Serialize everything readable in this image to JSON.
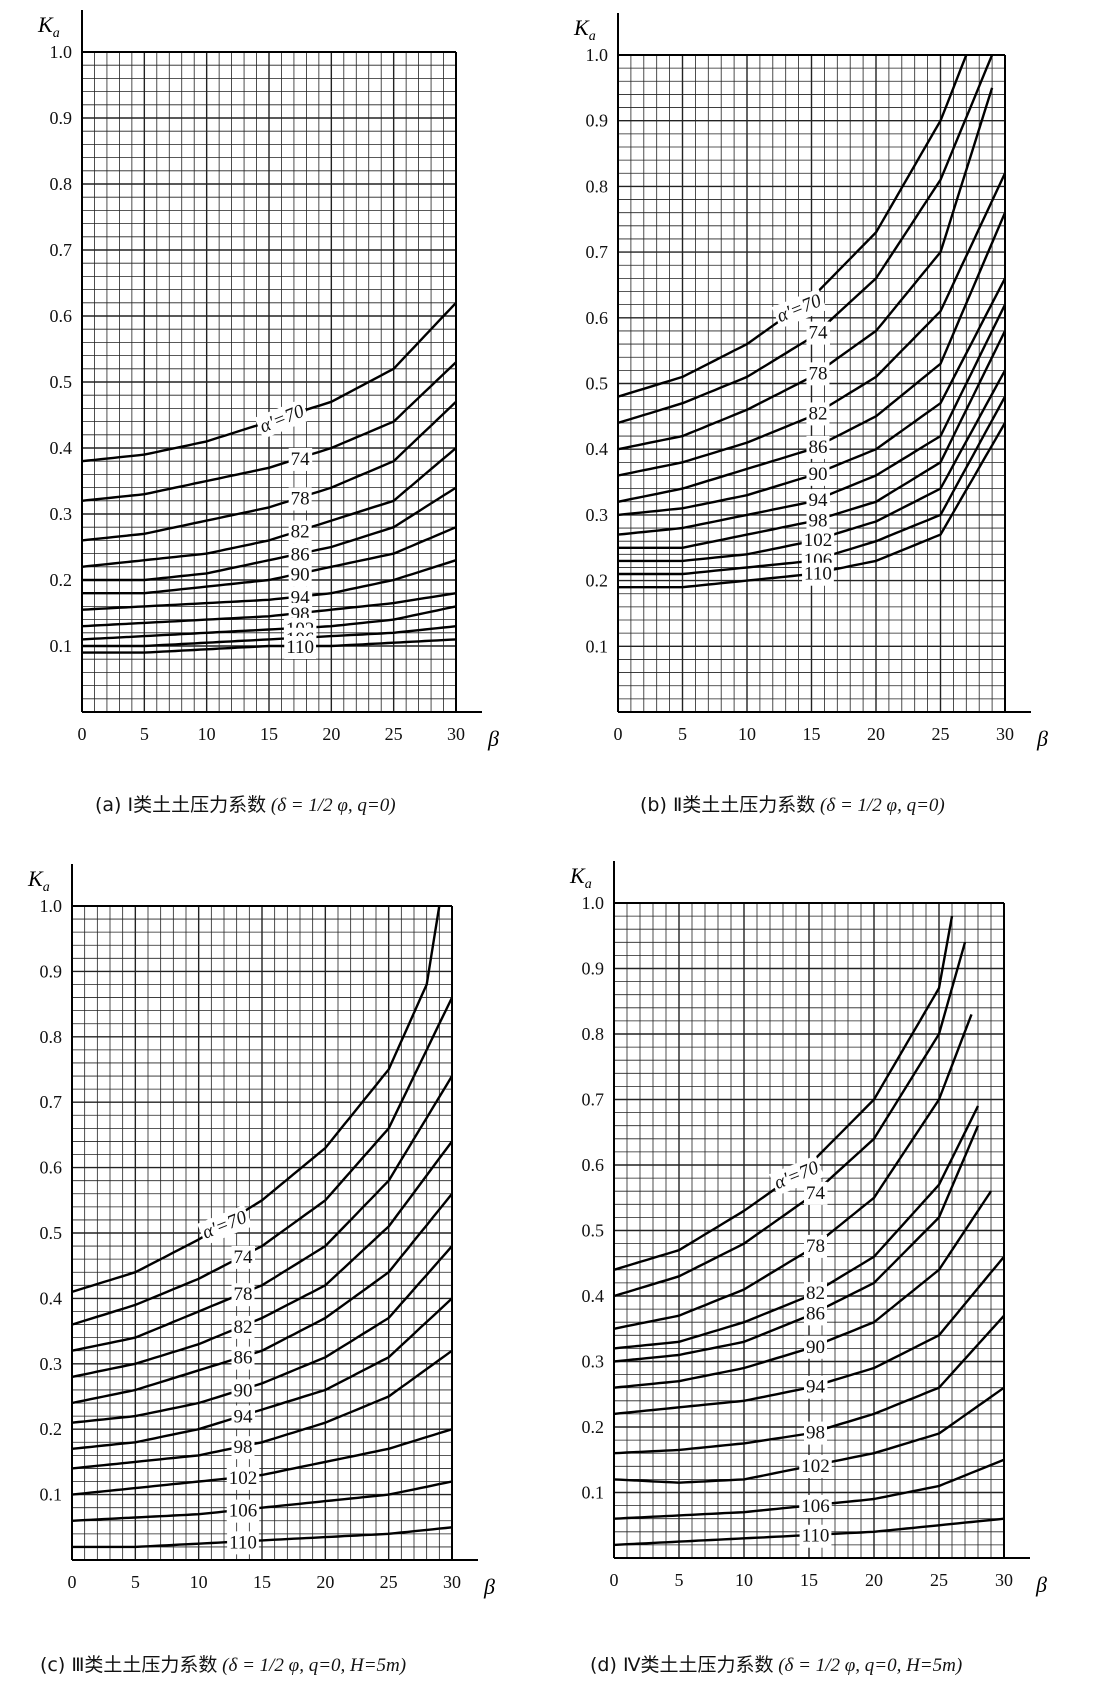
{
  "chart_data": [
    {
      "type": "line",
      "panel": "a",
      "caption_prefix": "(a)",
      "caption_title": "Ⅰ类土土压力系数",
      "caption_formula": "(δ = 1/2 φ, q=0)",
      "ylabel": "Ka",
      "xlabel": "β",
      "xlim": [
        0,
        30
      ],
      "ylim": [
        0,
        1.0
      ],
      "x_ticks": [
        "0",
        "5",
        "10",
        "15",
        "20",
        "25",
        "30"
      ],
      "y_ticks": [
        "0.1",
        "0.2",
        "0.3",
        "0.4",
        "0.5",
        "0.6",
        "0.7",
        "0.8",
        "0.9",
        "1.0"
      ],
      "grid": true,
      "series": [
        {
          "name": "α'=70",
          "x": [
            0,
            5,
            10,
            15,
            20,
            25,
            30
          ],
          "values": [
            0.38,
            0.39,
            0.41,
            0.44,
            0.47,
            0.52,
            0.62
          ]
        },
        {
          "name": "74",
          "x": [
            0,
            5,
            10,
            15,
            20,
            25,
            30
          ],
          "values": [
            0.32,
            0.33,
            0.35,
            0.37,
            0.4,
            0.44,
            0.53
          ]
        },
        {
          "name": "78",
          "x": [
            0,
            5,
            10,
            15,
            20,
            25,
            30
          ],
          "values": [
            0.26,
            0.27,
            0.29,
            0.31,
            0.34,
            0.38,
            0.47
          ]
        },
        {
          "name": "82",
          "x": [
            0,
            5,
            10,
            15,
            20,
            25,
            30
          ],
          "values": [
            0.22,
            0.23,
            0.24,
            0.26,
            0.29,
            0.32,
            0.4
          ]
        },
        {
          "name": "86",
          "x": [
            0,
            5,
            10,
            15,
            20,
            25,
            30
          ],
          "values": [
            0.2,
            0.2,
            0.21,
            0.23,
            0.25,
            0.28,
            0.34
          ]
        },
        {
          "name": "90",
          "x": [
            0,
            5,
            10,
            15,
            20,
            25,
            30
          ],
          "values": [
            0.18,
            0.18,
            0.19,
            0.2,
            0.22,
            0.24,
            0.28
          ]
        },
        {
          "name": "94",
          "x": [
            0,
            5,
            10,
            15,
            20,
            25,
            30
          ],
          "values": [
            0.155,
            0.16,
            0.165,
            0.17,
            0.18,
            0.2,
            0.23
          ]
        },
        {
          "name": "98",
          "x": [
            0,
            5,
            10,
            15,
            20,
            25,
            30
          ],
          "values": [
            0.13,
            0.135,
            0.14,
            0.145,
            0.155,
            0.165,
            0.18
          ]
        },
        {
          "name": "102",
          "x": [
            0,
            5,
            10,
            15,
            20,
            25,
            30
          ],
          "values": [
            0.11,
            0.115,
            0.12,
            0.125,
            0.13,
            0.14,
            0.16
          ]
        },
        {
          "name": "106",
          "x": [
            0,
            5,
            10,
            15,
            20,
            25,
            30
          ],
          "values": [
            0.1,
            0.1,
            0.105,
            0.11,
            0.115,
            0.12,
            0.13
          ]
        },
        {
          "name": "110",
          "x": [
            0,
            5,
            10,
            15,
            20,
            25,
            30
          ],
          "values": [
            0.09,
            0.09,
            0.095,
            0.1,
            0.1,
            0.105,
            0.11
          ]
        }
      ]
    },
    {
      "type": "line",
      "panel": "b",
      "caption_prefix": "(b)",
      "caption_title": "Ⅱ类土土压力系数",
      "caption_formula": "(δ = 1/2 φ, q=0)",
      "ylabel": "Ka",
      "xlabel": "β",
      "xlim": [
        0,
        30
      ],
      "ylim": [
        0,
        1.0
      ],
      "x_ticks": [
        "0",
        "5",
        "10",
        "15",
        "20",
        "25",
        "30"
      ],
      "y_ticks": [
        "0.1",
        "0.2",
        "0.3",
        "0.4",
        "0.5",
        "0.6",
        "0.7",
        "0.8",
        "0.9",
        "1.0"
      ],
      "grid": true,
      "series": [
        {
          "name": "α'=70",
          "x": [
            0,
            5,
            10,
            15,
            20,
            25,
            27
          ],
          "values": [
            0.48,
            0.51,
            0.56,
            0.63,
            0.73,
            0.9,
            1.0
          ]
        },
        {
          "name": "74",
          "x": [
            0,
            5,
            10,
            15,
            20,
            25,
            29
          ],
          "values": [
            0.44,
            0.47,
            0.51,
            0.57,
            0.66,
            0.81,
            1.0
          ]
        },
        {
          "name": "78",
          "x": [
            0,
            5,
            10,
            15,
            20,
            25,
            29
          ],
          "values": [
            0.4,
            0.42,
            0.46,
            0.51,
            0.58,
            0.7,
            0.95
          ]
        },
        {
          "name": "82",
          "x": [
            0,
            5,
            10,
            15,
            20,
            25,
            30
          ],
          "values": [
            0.36,
            0.38,
            0.41,
            0.45,
            0.51,
            0.61,
            0.82
          ]
        },
        {
          "name": "86",
          "x": [
            0,
            5,
            10,
            15,
            20,
            25,
            30
          ],
          "values": [
            0.32,
            0.34,
            0.37,
            0.4,
            0.45,
            0.53,
            0.76
          ]
        },
        {
          "name": "90",
          "x": [
            0,
            5,
            10,
            15,
            20,
            25,
            30
          ],
          "values": [
            0.3,
            0.31,
            0.33,
            0.36,
            0.4,
            0.47,
            0.66
          ]
        },
        {
          "name": "94",
          "x": [
            0,
            5,
            10,
            15,
            20,
            25,
            30
          ],
          "values": [
            0.27,
            0.28,
            0.3,
            0.32,
            0.36,
            0.42,
            0.62
          ]
        },
        {
          "name": "98",
          "x": [
            0,
            5,
            10,
            15,
            20,
            25,
            30
          ],
          "values": [
            0.25,
            0.25,
            0.27,
            0.29,
            0.32,
            0.38,
            0.58
          ]
        },
        {
          "name": "102",
          "x": [
            0,
            5,
            10,
            15,
            20,
            25,
            30
          ],
          "values": [
            0.23,
            0.23,
            0.24,
            0.26,
            0.29,
            0.34,
            0.52
          ]
        },
        {
          "name": "106",
          "x": [
            0,
            5,
            10,
            15,
            20,
            25,
            30
          ],
          "values": [
            0.21,
            0.21,
            0.22,
            0.23,
            0.26,
            0.3,
            0.48
          ]
        },
        {
          "name": "110",
          "x": [
            0,
            5,
            10,
            15,
            20,
            25,
            30
          ],
          "values": [
            0.19,
            0.19,
            0.2,
            0.21,
            0.23,
            0.27,
            0.44
          ]
        }
      ]
    },
    {
      "type": "line",
      "panel": "c",
      "caption_prefix": "(c)",
      "caption_title": "Ⅲ类土土压力系数",
      "caption_formula": "(δ = 1/2 φ, q=0, H=5m)",
      "ylabel": "Ka",
      "xlabel": "β",
      "xlim": [
        0,
        30
      ],
      "ylim": [
        0,
        1.0
      ],
      "x_ticks": [
        "0",
        "5",
        "10",
        "15",
        "20",
        "25",
        "30"
      ],
      "y_ticks": [
        "0.1",
        "0.2",
        "0.3",
        "0.4",
        "0.5",
        "0.6",
        "0.7",
        "0.8",
        "0.9",
        "1.0"
      ],
      "grid": true,
      "series": [
        {
          "name": "α'=70",
          "x": [
            0,
            5,
            10,
            15,
            20,
            25,
            28,
            29
          ],
          "values": [
            0.41,
            0.44,
            0.49,
            0.55,
            0.63,
            0.75,
            0.88,
            1.0
          ]
        },
        {
          "name": "74",
          "x": [
            0,
            5,
            10,
            15,
            20,
            25,
            30
          ],
          "values": [
            0.36,
            0.39,
            0.43,
            0.48,
            0.55,
            0.66,
            0.86
          ]
        },
        {
          "name": "78",
          "x": [
            0,
            5,
            10,
            15,
            20,
            25,
            30
          ],
          "values": [
            0.32,
            0.34,
            0.38,
            0.42,
            0.48,
            0.58,
            0.74
          ]
        },
        {
          "name": "82",
          "x": [
            0,
            5,
            10,
            15,
            20,
            25,
            30
          ],
          "values": [
            0.28,
            0.3,
            0.33,
            0.37,
            0.42,
            0.51,
            0.64
          ]
        },
        {
          "name": "86",
          "x": [
            0,
            5,
            10,
            15,
            20,
            25,
            30
          ],
          "values": [
            0.24,
            0.26,
            0.29,
            0.32,
            0.37,
            0.44,
            0.56
          ]
        },
        {
          "name": "90",
          "x": [
            0,
            5,
            10,
            15,
            20,
            25,
            30
          ],
          "values": [
            0.21,
            0.22,
            0.24,
            0.27,
            0.31,
            0.37,
            0.48
          ]
        },
        {
          "name": "94",
          "x": [
            0,
            5,
            10,
            15,
            20,
            25,
            30
          ],
          "values": [
            0.17,
            0.18,
            0.2,
            0.23,
            0.26,
            0.31,
            0.4
          ]
        },
        {
          "name": "98",
          "x": [
            0,
            5,
            10,
            15,
            20,
            25,
            30
          ],
          "values": [
            0.14,
            0.15,
            0.16,
            0.18,
            0.21,
            0.25,
            0.32
          ]
        },
        {
          "name": "102",
          "x": [
            0,
            5,
            10,
            15,
            20,
            25,
            30
          ],
          "values": [
            0.1,
            0.11,
            0.12,
            0.13,
            0.15,
            0.17,
            0.2
          ]
        },
        {
          "name": "106",
          "x": [
            0,
            5,
            10,
            15,
            20,
            25,
            30
          ],
          "values": [
            0.06,
            0.065,
            0.07,
            0.08,
            0.09,
            0.1,
            0.12
          ]
        },
        {
          "name": "110",
          "x": [
            0,
            5,
            10,
            15,
            20,
            25,
            30
          ],
          "values": [
            0.02,
            0.02,
            0.025,
            0.03,
            0.035,
            0.04,
            0.05
          ]
        }
      ]
    },
    {
      "type": "line",
      "panel": "d",
      "caption_prefix": "(d)",
      "caption_title": "Ⅳ类土土压力系数",
      "caption_formula": "(δ = 1/2 φ, q=0, H=5m)",
      "ylabel": "Ka",
      "xlabel": "β",
      "xlim": [
        0,
        30
      ],
      "ylim": [
        0,
        1.0
      ],
      "x_ticks": [
        "0",
        "5",
        "10",
        "15",
        "20",
        "25",
        "30"
      ],
      "y_ticks": [
        "0.1",
        "0.2",
        "0.3",
        "0.4",
        "0.5",
        "0.6",
        "0.7",
        "0.8",
        "0.9",
        "1.0"
      ],
      "grid": true,
      "series": [
        {
          "name": "α'=70",
          "x": [
            0,
            5,
            10,
            15,
            20,
            25,
            26
          ],
          "values": [
            0.44,
            0.47,
            0.53,
            0.6,
            0.7,
            0.87,
            0.98
          ]
        },
        {
          "name": "74",
          "x": [
            0,
            5,
            10,
            15,
            20,
            25,
            27
          ],
          "values": [
            0.4,
            0.43,
            0.48,
            0.55,
            0.64,
            0.8,
            0.94
          ]
        },
        {
          "name": "78",
          "x": [
            0,
            5,
            10,
            15,
            20,
            25,
            27.5
          ],
          "values": [
            0.35,
            0.37,
            0.41,
            0.47,
            0.55,
            0.7,
            0.83
          ]
        },
        {
          "name": "82",
          "x": [
            0,
            5,
            10,
            15,
            20,
            25,
            28
          ],
          "values": [
            0.32,
            0.33,
            0.36,
            0.4,
            0.46,
            0.57,
            0.69
          ]
        },
        {
          "name": "86",
          "x": [
            0,
            5,
            10,
            15,
            20,
            25,
            28
          ],
          "values": [
            0.3,
            0.31,
            0.33,
            0.37,
            0.42,
            0.52,
            0.66
          ]
        },
        {
          "name": "90",
          "x": [
            0,
            5,
            10,
            15,
            20,
            25,
            29
          ],
          "values": [
            0.26,
            0.27,
            0.29,
            0.32,
            0.36,
            0.44,
            0.56
          ]
        },
        {
          "name": "94",
          "x": [
            0,
            5,
            10,
            15,
            20,
            25,
            30
          ],
          "values": [
            0.22,
            0.23,
            0.24,
            0.26,
            0.29,
            0.34,
            0.46
          ]
        },
        {
          "name": "98",
          "x": [
            0,
            5,
            10,
            15,
            20,
            25,
            30
          ],
          "values": [
            0.16,
            0.165,
            0.175,
            0.19,
            0.22,
            0.26,
            0.37
          ]
        },
        {
          "name": "102",
          "x": [
            0,
            5,
            10,
            15,
            20,
            25,
            30
          ],
          "values": [
            0.12,
            0.115,
            0.12,
            0.14,
            0.16,
            0.19,
            0.26
          ]
        },
        {
          "name": "106",
          "x": [
            0,
            5,
            10,
            15,
            20,
            25,
            30
          ],
          "values": [
            0.06,
            0.065,
            0.07,
            0.08,
            0.09,
            0.11,
            0.15
          ]
        },
        {
          "name": "110",
          "x": [
            0,
            5,
            10,
            15,
            20,
            25,
            30
          ],
          "values": [
            0.02,
            0.025,
            0.03,
            0.035,
            0.04,
            0.05,
            0.06
          ]
        }
      ]
    }
  ]
}
